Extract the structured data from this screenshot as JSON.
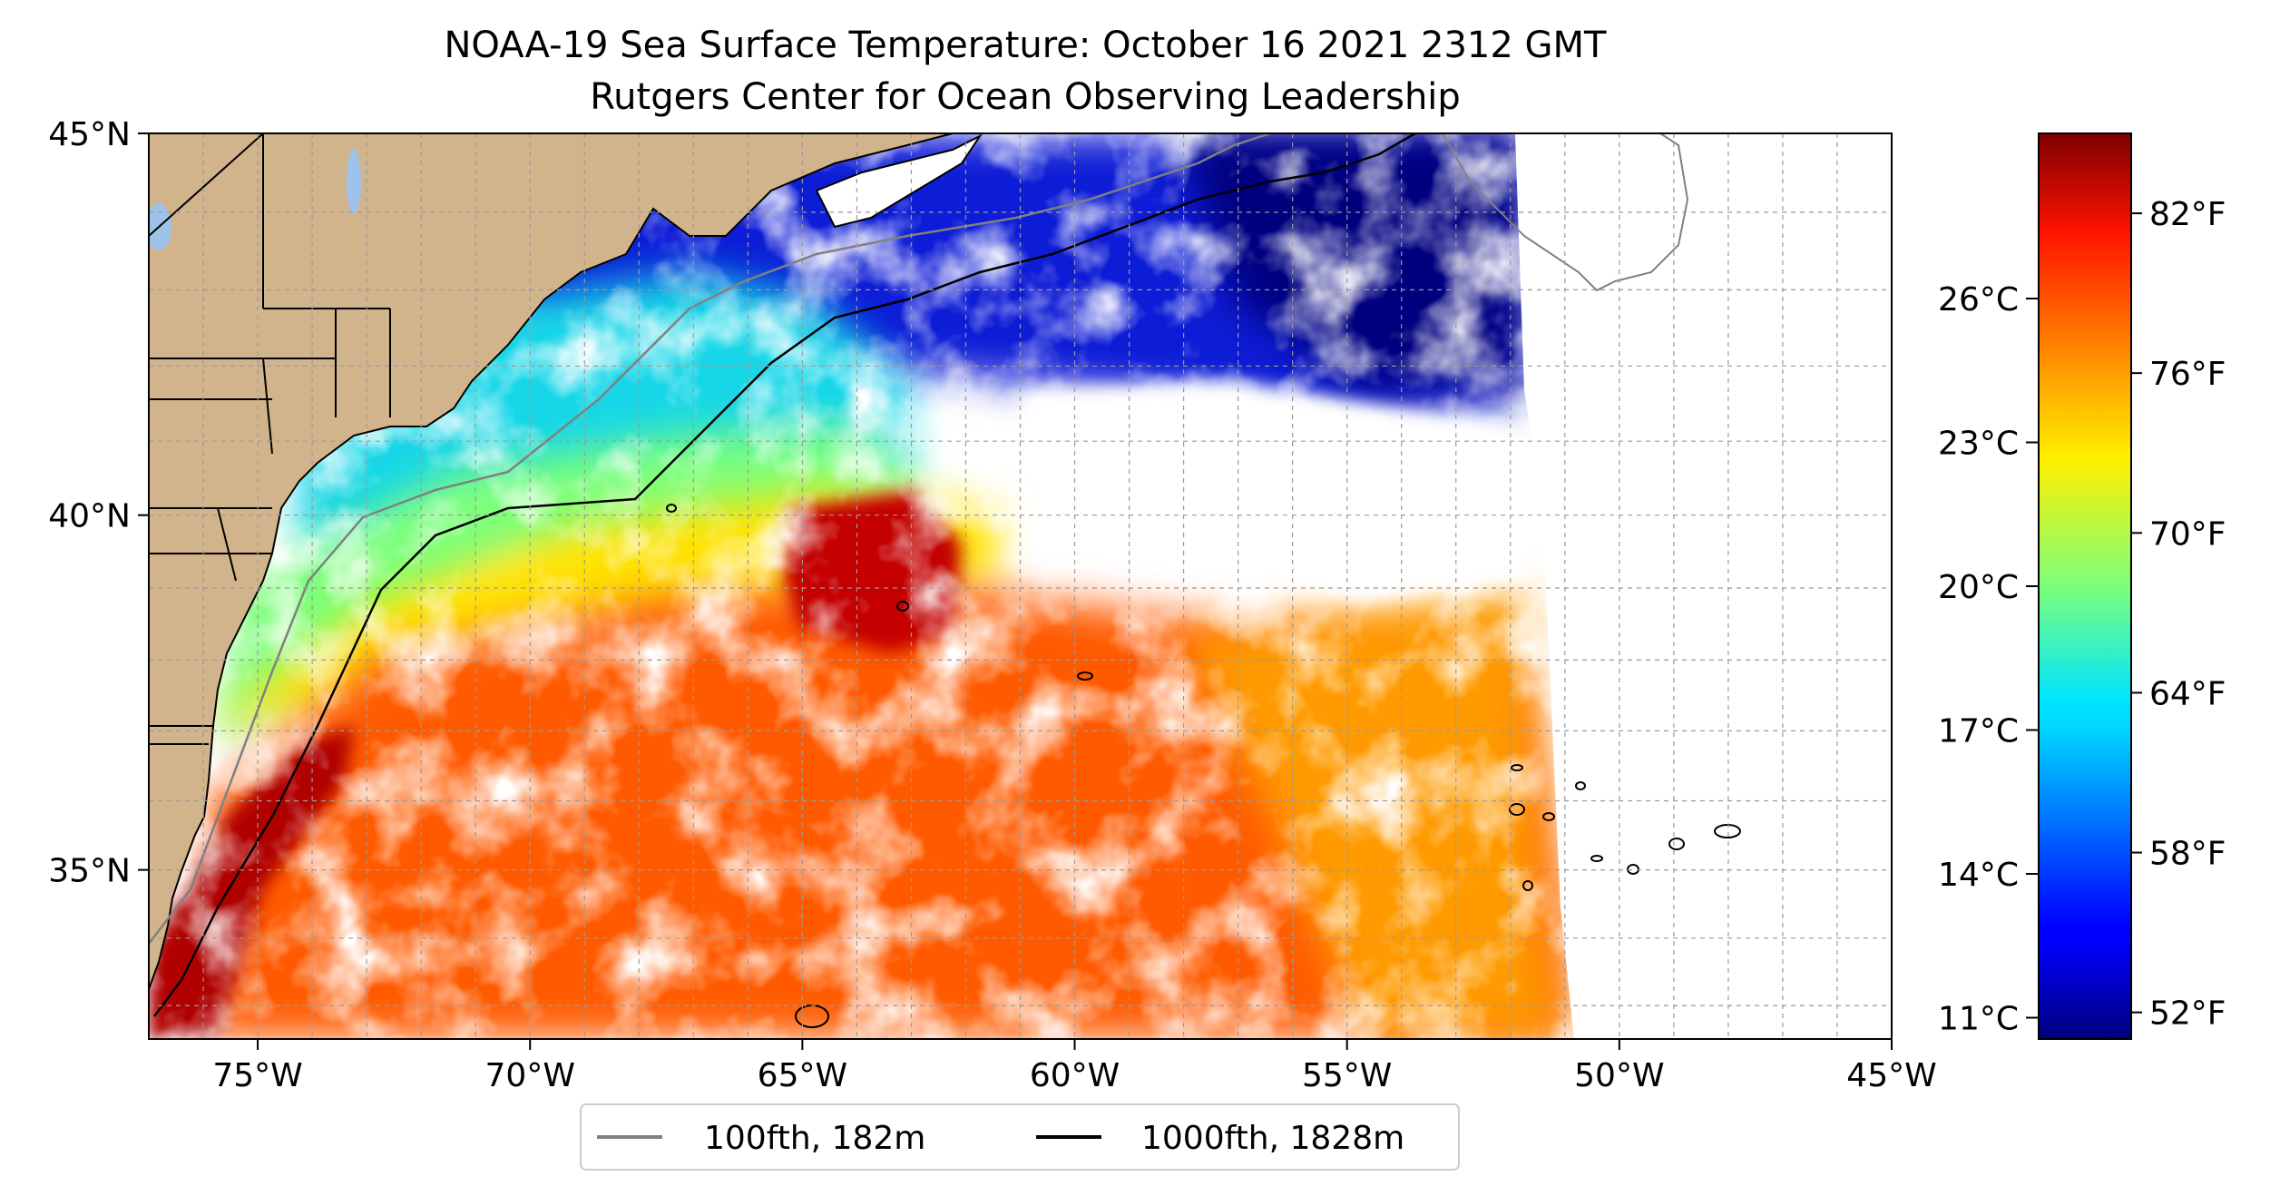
{
  "title": "NOAA-19 Sea Surface Temperature: October 16 2021 2312 GMT",
  "subtitle": "Rutgers Center for Ocean Observing Leadership",
  "map": {
    "lon_range": [
      -77,
      -45
    ],
    "lat_range": [
      32.5,
      45
    ],
    "lon_ticks": [
      {
        "value": -75,
        "label": "75°W"
      },
      {
        "value": -70,
        "label": "70°W"
      },
      {
        "value": -65,
        "label": "65°W"
      },
      {
        "value": -60,
        "label": "60°W"
      },
      {
        "value": -55,
        "label": "55°W"
      },
      {
        "value": -50,
        "label": "50°W"
      },
      {
        "value": -45,
        "label": "45°W"
      }
    ],
    "lat_ticks": [
      {
        "value": 45,
        "label": "45°N"
      },
      {
        "value": 40,
        "label": "40°N"
      },
      {
        "value": 35,
        "label": "35°N"
      }
    ],
    "grid": true,
    "land_color": "#d2b48c",
    "lake_color": "#9ec3ea"
  },
  "legend": {
    "placement": "bottom-center",
    "items": [
      {
        "label": "100fth, 182m",
        "color": "#808080"
      },
      {
        "label": "1000fth, 1828m",
        "color": "#000000"
      }
    ]
  },
  "colorbar": {
    "colormap": "jet",
    "range_f": [
      51,
      85
    ],
    "fahrenheit_ticks": [
      {
        "value": 82,
        "label": "82°F"
      },
      {
        "value": 76,
        "label": "76°F"
      },
      {
        "value": 70,
        "label": "70°F"
      },
      {
        "value": 64,
        "label": "64°F"
      },
      {
        "value": 58,
        "label": "58°F"
      },
      {
        "value": 52,
        "label": "52°F"
      }
    ],
    "celsius_ticks": [
      {
        "value": 26,
        "label": "26°C"
      },
      {
        "value": 23,
        "label": "23°C"
      },
      {
        "value": 20,
        "label": "20°C"
      },
      {
        "value": 17,
        "label": "17°C"
      },
      {
        "value": 14,
        "label": "14°C"
      },
      {
        "value": 11,
        "label": "11°C"
      }
    ]
  }
}
